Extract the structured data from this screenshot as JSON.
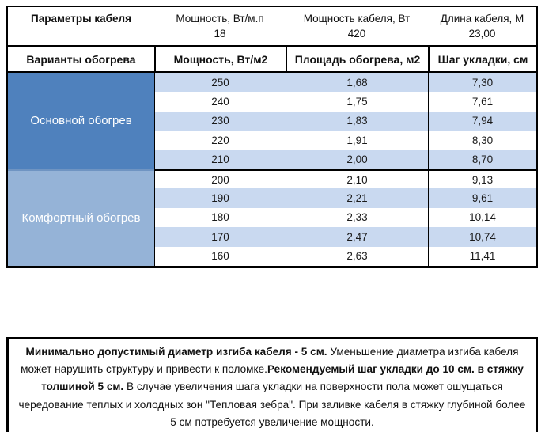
{
  "colors": {
    "primary_block": "#4F81BD",
    "comfort_block": "#95B3D7",
    "row_stripe": "#C9D9F0",
    "row_white": "#FFFFFF",
    "border": "#000000"
  },
  "params_table": {
    "header": [
      "Параметры кабеля",
      "Мощность, Вт/м.п",
      "Мощность кабеля, Вт",
      "Длина кабеля, М"
    ],
    "values": [
      "",
      "18",
      "420",
      "23,00"
    ]
  },
  "variants_table": {
    "header": [
      "Варианты обогрева",
      "Мощность, Вт/м2",
      "Площадь обогрева, м2",
      "Шаг укладки, см"
    ],
    "groups": [
      {
        "label": "Основной обогрев",
        "rows": [
          [
            "250",
            "1,68",
            "7,30"
          ],
          [
            "240",
            "1,75",
            "7,61"
          ],
          [
            "230",
            "1,83",
            "7,94"
          ],
          [
            "220",
            "1,91",
            "8,30"
          ],
          [
            "210",
            "2,00",
            "8,70"
          ]
        ]
      },
      {
        "label": "Комфортный обогрев",
        "rows": [
          [
            "200",
            "2,10",
            "9,13"
          ],
          [
            "190",
            "2,21",
            "9,61"
          ],
          [
            "180",
            "2,33",
            "10,14"
          ],
          [
            "170",
            "2,47",
            "10,74"
          ],
          [
            "160",
            "2,63",
            "11,41"
          ]
        ]
      }
    ]
  },
  "note": {
    "segments": [
      {
        "text": "Минимально допустимый диаметр изгиба кабеля - 5 см.",
        "bold": true
      },
      {
        "text": "  Уменьшение диаметра изгиба кабеля может нарушить структуру и привести к поломке.",
        "bold": false
      },
      {
        "text": "Рекомендуемый шаг укладки до 10 см. в стяжку толшиной 5 см.",
        "bold": true
      },
      {
        "text": " В  случае увеличения шага укладки на поверхности пола может ошущаться чередование теплых и холодных зон \"Тепловая зебра\". При заливке кабеля в стяжку глубиной более 5 см потребуется увеличение мощности.",
        "bold": false
      }
    ]
  }
}
